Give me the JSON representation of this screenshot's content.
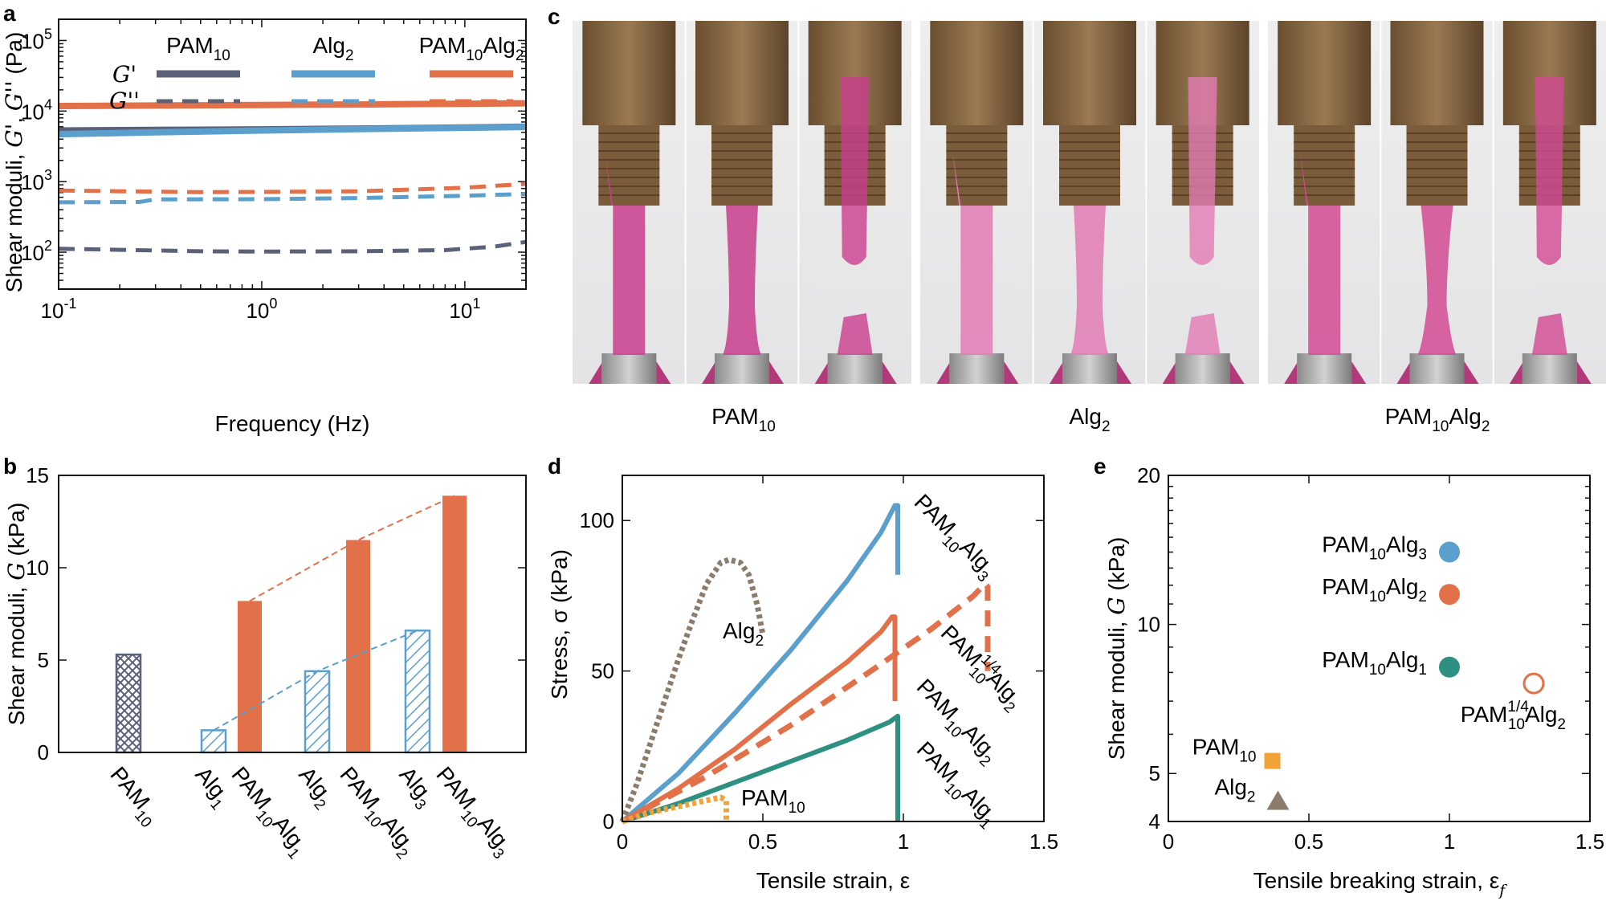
{
  "panels": {
    "a": "a",
    "b": "b",
    "c": "c",
    "d": "d",
    "e": "e"
  },
  "colors": {
    "pam": "#5b6179",
    "alg": "#5b9fcc",
    "pamalg": "#e27049",
    "green": "#2e9080",
    "orange": "#f1a33a",
    "brown": "#8a7d6e"
  },
  "panel_c": {
    "photo_labels": [
      {
        "base": "PAM",
        "sub": "10",
        "base2": "",
        "sub2": ""
      },
      {
        "base": "Alg",
        "sub": "2",
        "base2": "",
        "sub2": ""
      },
      {
        "base": "PAM",
        "sub": "10",
        "base2": "Alg",
        "sub2": "2"
      }
    ]
  },
  "chart_data": [
    {
      "panel": "a",
      "type": "line",
      "xlabel": "Frequency (Hz)",
      "ylabel": "Shear moduli, G', G'' (Pa)",
      "xscale": "log",
      "yscale": "log",
      "xlim": [
        0.1,
        20
      ],
      "ylim": [
        30,
        200000
      ],
      "xtick_labels": [
        {
          "v": 0.1,
          "base": "10",
          "exp": "-1"
        },
        {
          "v": 1,
          "base": "10",
          "exp": "0"
        },
        {
          "v": 10,
          "base": "10",
          "exp": "1"
        }
      ],
      "ytick_labels": [
        {
          "v": 100,
          "base": "10",
          "exp": "2"
        },
        {
          "v": 1000,
          "base": "10",
          "exp": "3"
        },
        {
          "v": 10000,
          "base": "10",
          "exp": "4"
        },
        {
          "v": 100000,
          "base": "10",
          "exp": "5"
        }
      ],
      "legend_rows": [
        "G'",
        "G''"
      ],
      "legend_cols": [
        {
          "base": "PAM",
          "sub": "10",
          "base2": "",
          "sub2": "",
          "color": "pam"
        },
        {
          "base": "Alg",
          "sub": "2",
          "base2": "",
          "sub2": "",
          "color": "alg"
        },
        {
          "base": "PAM",
          "sub": "10",
          "base2": "Alg",
          "sub2": "2",
          "color": "pamalg"
        }
      ],
      "series": [
        {
          "name": "PAM10 G'",
          "color": "pam",
          "style": "solid",
          "x": [
            0.1,
            0.3,
            1,
            3,
            10,
            20
          ],
          "y": [
            5300,
            5400,
            5500,
            5650,
            5850,
            6000
          ]
        },
        {
          "name": "Alg2 G'",
          "color": "alg",
          "style": "solid",
          "x": [
            0.1,
            0.3,
            1,
            3,
            10,
            20
          ],
          "y": [
            4700,
            5000,
            5300,
            5550,
            5800,
            5950
          ]
        },
        {
          "name": "PAM10Alg2 G'",
          "color": "pamalg",
          "style": "solid",
          "x": [
            0.1,
            0.3,
            1,
            3,
            10,
            20
          ],
          "y": [
            11800,
            12000,
            12200,
            12400,
            12700,
            12900
          ]
        },
        {
          "name": "PAM10 G''",
          "color": "pam",
          "style": "dash",
          "x": [
            0.1,
            0.2,
            0.5,
            1,
            3,
            8,
            14,
            20
          ],
          "y": [
            112,
            108,
            103,
            102,
            103,
            107,
            120,
            140
          ]
        },
        {
          "name": "Alg2 G''",
          "color": "alg",
          "style": "dash",
          "x": [
            0.1,
            0.25,
            0.3,
            1,
            3,
            10,
            20
          ],
          "y": [
            510,
            515,
            560,
            565,
            585,
            630,
            670
          ]
        },
        {
          "name": "PAM10Alg2 G''",
          "color": "pamalg",
          "style": "dash",
          "x": [
            0.1,
            0.2,
            0.5,
            1,
            3,
            10,
            20
          ],
          "y": [
            750,
            730,
            710,
            715,
            730,
            820,
            930
          ]
        }
      ]
    },
    {
      "panel": "b",
      "type": "bar",
      "ylabel": "Shear moduli, G (kPa)",
      "ylim": [
        0,
        15
      ],
      "yticks": [
        0,
        5,
        10,
        15
      ],
      "bars": [
        {
          "label": "PAM",
          "sub": "10",
          "label2": "",
          "sub2": "",
          "value": 5.3,
          "style": "cross",
          "color": "pam"
        },
        {
          "label": "Alg",
          "sub": "1",
          "label2": "",
          "sub2": "",
          "value": 1.2,
          "style": "hatch",
          "color": "alg"
        },
        {
          "label": "PAM",
          "sub": "10",
          "label2": "Alg",
          "sub2": "1",
          "value": 8.2,
          "style": "solid",
          "color": "pamalg"
        },
        {
          "label": "Alg",
          "sub": "2",
          "label2": "",
          "sub2": "",
          "value": 4.4,
          "style": "hatch",
          "color": "alg"
        },
        {
          "label": "PAM",
          "sub": "10",
          "label2": "Alg",
          "sub2": "2",
          "value": 11.5,
          "style": "solid",
          "color": "pamalg"
        },
        {
          "label": "Alg",
          "sub": "3",
          "label2": "",
          "sub2": "",
          "value": 6.6,
          "style": "hatch",
          "color": "alg"
        },
        {
          "label": "PAM",
          "sub": "10",
          "label2": "Alg",
          "sub2": "3",
          "value": 13.9,
          "style": "solid",
          "color": "pamalg"
        }
      ]
    },
    {
      "panel": "d",
      "type": "line",
      "xlabel": "Tensile strain, ε",
      "ylabel": "Stress, σ (kPa)",
      "xlim": [
        0,
        1.5
      ],
      "ylim": [
        0,
        115
      ],
      "xticks": [
        0,
        0.5,
        1,
        1.5
      ],
      "yticks": [
        0,
        50,
        100
      ],
      "xtick_labels": [
        "0",
        "0.5",
        "1",
        "1.5"
      ],
      "ytick_labels": [
        "0",
        "50",
        "100"
      ],
      "series": [
        {
          "name": "PAM10Alg3",
          "color": "alg",
          "style": "solid",
          "x": [
            0,
            0.2,
            0.4,
            0.6,
            0.8,
            0.92,
            0.97,
            0.98,
            0.98
          ],
          "y": [
            0,
            16,
            36,
            57,
            80,
            96,
            105,
            105,
            82
          ]
        },
        {
          "name": "PAM10Alg2",
          "color": "pamalg",
          "style": "solid",
          "x": [
            0,
            0.2,
            0.4,
            0.6,
            0.8,
            0.92,
            0.96,
            0.97,
            0.97
          ],
          "y": [
            0,
            11,
            24,
            39,
            53,
            63,
            68,
            68,
            40
          ]
        },
        {
          "name": "PAM10Alg1",
          "color": "green",
          "style": "solid",
          "x": [
            0,
            0.2,
            0.4,
            0.6,
            0.8,
            0.95,
            0.98,
            0.98
          ],
          "y": [
            0,
            6,
            13,
            20,
            27,
            33,
            35,
            0
          ]
        },
        {
          "name": "PAM1/4 10Alg2",
          "color": "pamalg",
          "style": "dash",
          "x": [
            0,
            0.3,
            0.6,
            0.9,
            1.1,
            1.25,
            1.29,
            1.3,
            1.3
          ],
          "y": [
            0,
            15,
            32,
            51,
            64,
            75,
            79,
            78,
            50
          ]
        },
        {
          "name": "Alg2",
          "color": "brown",
          "style": "dot",
          "x": [
            0,
            0.05,
            0.1,
            0.15,
            0.2,
            0.25,
            0.3,
            0.35,
            0.38,
            0.42,
            0.45,
            0.48,
            0.5
          ],
          "y": [
            0,
            12,
            26,
            40,
            54,
            67,
            79,
            86,
            87,
            86,
            82,
            72,
            62
          ]
        },
        {
          "name": "PAM10",
          "color": "orange",
          "style": "dot",
          "x": [
            0,
            0.1,
            0.2,
            0.3,
            0.35,
            0.37,
            0.37
          ],
          "y": [
            0,
            3,
            5,
            7,
            8,
            7,
            0
          ]
        }
      ],
      "labels": [
        {
          "base": "PAM",
          "sub": "10",
          "base2": "Alg",
          "sub2": "3",
          "sup": ""
        },
        {
          "base": "PAM",
          "sub": "10",
          "base2": "Alg",
          "sub2": "2",
          "sup": "1/4"
        },
        {
          "base": "PAM",
          "sub": "10",
          "base2": "Alg",
          "sub2": "2",
          "sup": ""
        },
        {
          "base": "PAM",
          "sub": "10",
          "base2": "Alg",
          "sub2": "1",
          "sup": ""
        },
        {
          "base": "Alg",
          "sub": "2",
          "base2": "",
          "sub2": "",
          "sup": ""
        },
        {
          "base": "PAM",
          "sub": "10",
          "base2": "",
          "sub2": "",
          "sup": ""
        }
      ]
    },
    {
      "panel": "e",
      "type": "scatter",
      "xlabel": "Tensile breaking strain, ε",
      "xlabel_sub": "f",
      "ylabel": "Shear moduli, G (kPa)",
      "yscale": "log",
      "xlim": [
        0,
        1.5
      ],
      "ylim": [
        4,
        20
      ],
      "xticks": [
        0,
        0.5,
        1,
        1.5
      ],
      "xtick_labels": [
        "0",
        "0.5",
        "1",
        "1.5"
      ],
      "yticks": [
        4,
        5,
        10,
        20
      ],
      "ytick_labels": [
        "4",
        "5",
        "10",
        "20"
      ],
      "points": [
        {
          "x": 1.0,
          "y": 14.0,
          "marker": "circle",
          "color": "alg",
          "base": "PAM",
          "sub": "10",
          "base2": "Alg",
          "sub2": "3",
          "sup": ""
        },
        {
          "x": 1.0,
          "y": 11.5,
          "marker": "circle",
          "color": "pamalg",
          "base": "PAM",
          "sub": "10",
          "base2": "Alg",
          "sub2": "2",
          "sup": ""
        },
        {
          "x": 1.0,
          "y": 8.2,
          "marker": "circle",
          "color": "green",
          "base": "PAM",
          "sub": "10",
          "base2": "Alg",
          "sub2": "1",
          "sup": ""
        },
        {
          "x": 1.3,
          "y": 7.6,
          "marker": "open-circle",
          "color": "pamalg",
          "base": "PAM",
          "sub": "10",
          "base2": "Alg",
          "sub2": "2",
          "sup": "1/4"
        },
        {
          "x": 0.37,
          "y": 5.3,
          "marker": "square",
          "color": "orange",
          "base": "PAM",
          "sub": "10",
          "base2": "",
          "sub2": "",
          "sup": ""
        },
        {
          "x": 0.39,
          "y": 4.4,
          "marker": "triangle",
          "color": "brown",
          "base": "Alg",
          "sub": "2",
          "base2": "",
          "sub2": "",
          "sup": ""
        }
      ]
    }
  ]
}
